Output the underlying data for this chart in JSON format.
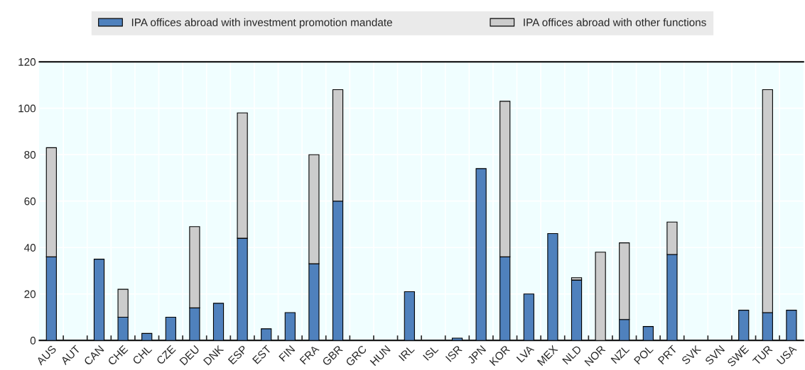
{
  "chart_data": {
    "type": "bar",
    "stacked": true,
    "categories": [
      "AUS",
      "AUT",
      "CAN",
      "CHE",
      "CHL",
      "CZE",
      "DEU",
      "DNK",
      "ESP",
      "EST",
      "FIN",
      "FRA",
      "GBR",
      "GRC",
      "HUN",
      "IRL",
      "ISL",
      "ISR",
      "JPN",
      "KOR",
      "LVA",
      "MEX",
      "NLD",
      "NOR",
      "NZL",
      "POL",
      "PRT",
      "SVK",
      "SVN",
      "SWE",
      "TUR",
      "USA"
    ],
    "series": [
      {
        "name": "IPA offices abroad with investment promotion mandate",
        "color": "#4f81bd",
        "values": [
          36,
          0,
          35,
          10,
          3,
          10,
          14,
          16,
          44,
          5,
          12,
          33,
          60,
          0,
          0,
          21,
          0,
          1,
          74,
          36,
          20,
          46,
          26,
          0,
          9,
          6,
          37,
          0,
          0,
          13,
          12,
          13
        ]
      },
      {
        "name": "IPA offices abroad with other functions",
        "color": "#cccccc",
        "values": [
          47,
          null,
          null,
          12,
          null,
          null,
          35,
          null,
          54,
          null,
          null,
          47,
          48,
          null,
          null,
          null,
          null,
          null,
          null,
          67,
          null,
          null,
          1,
          38,
          33,
          null,
          14,
          null,
          null,
          null,
          96,
          null
        ]
      }
    ],
    "ylim": [
      0,
      120
    ],
    "yticks": [
      0,
      20,
      40,
      60,
      80,
      100,
      120
    ],
    "grid": true,
    "legend": "top"
  }
}
